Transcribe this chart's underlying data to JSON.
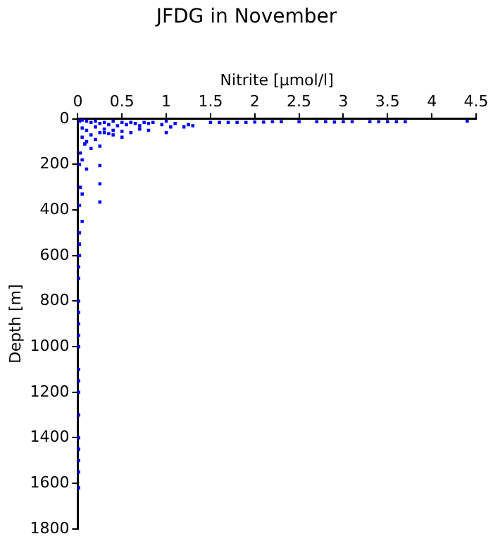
{
  "chart_data": {
    "type": "scatter",
    "title": "JFDG in November",
    "xlabel": "Nitrite [µmol/l]",
    "ylabel": "Depth [m]",
    "marker": "square",
    "grid": false,
    "legend": false,
    "xlim": [
      0,
      4.5
    ],
    "xticks": [
      0,
      0.5,
      1,
      1.5,
      2,
      2.5,
      3,
      3.5,
      4,
      4.5
    ],
    "ylim": [
      1800,
      0
    ],
    "yticks": [
      0,
      200,
      400,
      600,
      800,
      1000,
      1200,
      1400,
      1600,
      1800
    ],
    "series": [
      {
        "color": "#0000ff",
        "x": [
          4.4,
          3.7,
          3.6,
          3.5,
          3.4,
          3.3,
          3.1,
          3.0,
          2.9,
          2.8,
          2.7,
          2.5,
          2.3,
          2.2,
          2.1,
          2.0,
          1.9,
          1.8,
          1.7,
          1.6,
          1.5,
          1.3,
          1.25,
          1.2,
          1.1,
          1.05,
          1.0,
          0.95,
          0.85,
          0.8,
          0.75,
          0.7,
          0.65,
          0.6,
          0.55,
          0.5,
          0.45,
          0.4,
          0.35,
          0.3,
          0.25,
          0.2,
          0.15,
          0.1,
          0.05,
          0.02,
          1.0,
          0.8,
          0.7,
          0.6,
          0.5,
          0.4,
          0.35,
          0.3,
          0.25,
          0.2,
          0.15,
          0.1,
          0.05,
          0.5,
          0.4,
          0.3,
          0.2,
          0.1,
          0.05,
          0.25,
          0.15,
          0.08,
          0.03,
          0.25,
          0.05,
          0.02,
          0.25,
          0.1,
          0.03,
          0.25,
          0.05,
          0.02,
          0.05,
          0.02,
          0.02,
          0.02,
          0.01,
          0.01,
          0.01,
          0.01,
          0.01,
          0.01,
          0.01,
          0.01,
          0.01,
          0.01,
          0.01,
          0.01,
          0.01,
          0.01,
          0.01,
          0.01
        ],
        "values": [
          10,
          12,
          12,
          12,
          12,
          12,
          12,
          12,
          14,
          12,
          12,
          12,
          12,
          12,
          14,
          14,
          15,
          15,
          15,
          15,
          15,
          30,
          25,
          35,
          20,
          35,
          10,
          25,
          15,
          20,
          15,
          30,
          20,
          15,
          25,
          15,
          30,
          10,
          25,
          15,
          20,
          10,
          15,
          10,
          5,
          10,
          60,
          50,
          45,
          60,
          55,
          50,
          65,
          45,
          60,
          35,
          70,
          50,
          40,
          80,
          70,
          60,
          90,
          100,
          80,
          120,
          130,
          110,
          150,
          205,
          180,
          200,
          285,
          220,
          300,
          365,
          330,
          380,
          450,
          500,
          550,
          600,
          650,
          700,
          800,
          850,
          900,
          950,
          1000,
          1100,
          1150,
          1200,
          1300,
          1400,
          1450,
          1500,
          1620,
          1550
        ]
      }
    ]
  }
}
